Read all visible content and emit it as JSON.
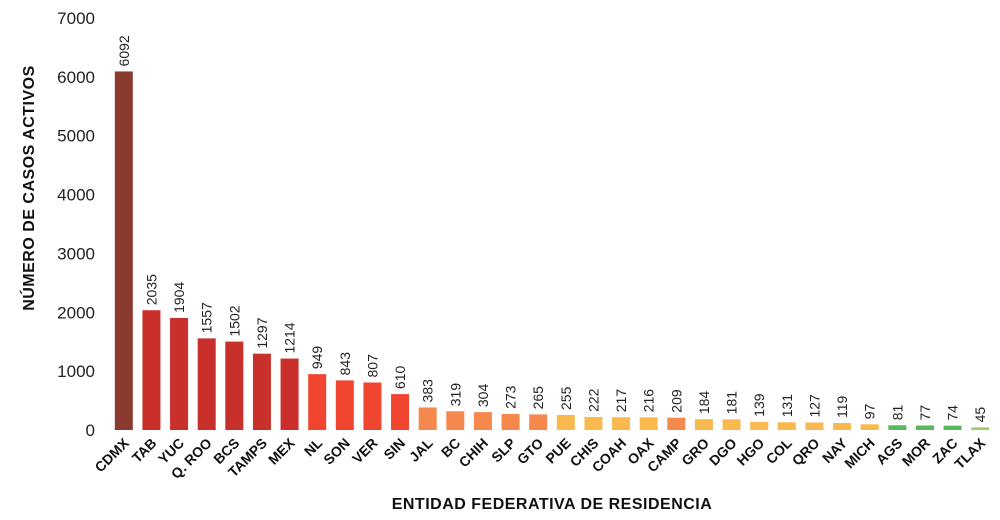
{
  "chart_data": {
    "type": "bar",
    "title": "",
    "xlabel": "ENTIDAD FEDERATIVA DE RESIDENCIA",
    "ylabel": "NÚMERO DE CASOS ACTIVOS",
    "ylim": [
      0,
      7000
    ],
    "yticks": [
      0,
      1000,
      2000,
      3000,
      4000,
      5000,
      6000,
      7000
    ],
    "grid": false,
    "legend": "none",
    "categories": [
      "CDMX",
      "TAB",
      "YUC",
      "Q. ROO",
      "BCS",
      "TAMPS",
      "MEX",
      "NL",
      "SON",
      "VER",
      "SIN",
      "JAL",
      "BC",
      "CHIH",
      "SLP",
      "GTO",
      "PUE",
      "CHIS",
      "COAH",
      "OAX",
      "CAMP",
      "GRO",
      "DGO",
      "HGO",
      "COL",
      "QRO",
      "NAY",
      "MICH",
      "AGS",
      "MOR",
      "ZAC",
      "TLAX"
    ],
    "values": [
      6092,
      2035,
      1904,
      1557,
      1502,
      1297,
      1214,
      949,
      843,
      807,
      610,
      383,
      319,
      304,
      273,
      265,
      255,
      222,
      217,
      216,
      209,
      184,
      181,
      139,
      131,
      127,
      119,
      97,
      81,
      77,
      74,
      45
    ],
    "colors": [
      "#8b3a2f",
      "#c9302c",
      "#c9302c",
      "#c9302c",
      "#c9302c",
      "#c9302c",
      "#c9302c",
      "#f04630",
      "#f04630",
      "#f04630",
      "#f04630",
      "#f5894d",
      "#f5894d",
      "#f5894d",
      "#f5894d",
      "#f5894d",
      "#f9b94f",
      "#f9b94f",
      "#f9b94f",
      "#f9b94f",
      "#f5894d",
      "#f9b94f",
      "#f9b94f",
      "#f9b94f",
      "#f9b94f",
      "#f9b94f",
      "#f9b94f",
      "#f9b94f",
      "#5cb85c",
      "#5cb85c",
      "#5cb85c",
      "#9ccc65"
    ]
  }
}
